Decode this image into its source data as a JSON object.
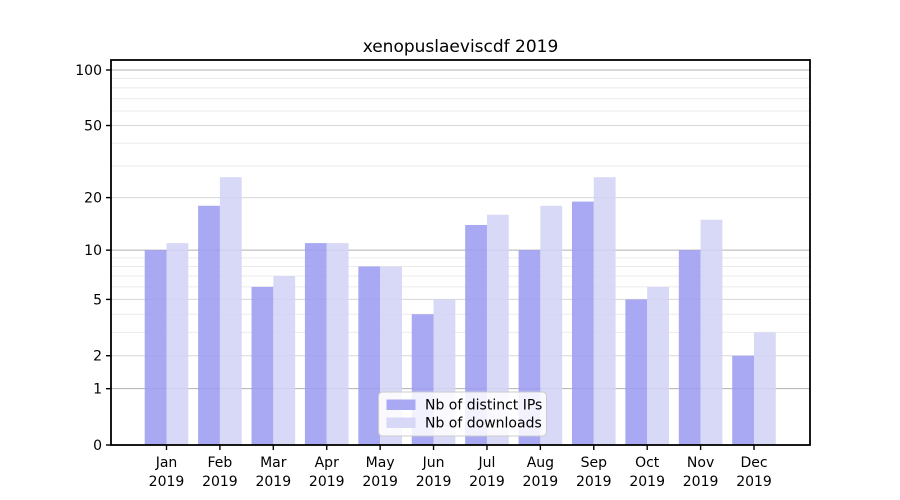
{
  "page": {
    "background": "#ffffff"
  },
  "chart_data": {
    "type": "bar",
    "title": "xenopuslaeviscdf 2019",
    "categories": [
      "Jan 2019",
      "Feb 2019",
      "Mar 2019",
      "Apr 2019",
      "May 2019",
      "Jun 2019",
      "Jul 2019",
      "Aug 2019",
      "Sep 2019",
      "Oct 2019",
      "Nov 2019",
      "Dec 2019"
    ],
    "series": [
      {
        "name": "Nb of distinct IPs",
        "color": "#9d9df1",
        "values": [
          10,
          18,
          6,
          11,
          8,
          4,
          14,
          10,
          19,
          5,
          10,
          2
        ]
      },
      {
        "name": "Nb of downloads",
        "color": "#d3d3f6",
        "values": [
          11,
          26,
          7,
          11,
          8,
          5,
          16,
          18,
          26,
          6,
          15,
          3
        ]
      }
    ],
    "xlabel": "",
    "ylabel": "",
    "y_scale": "log10(value+1)",
    "y_ticks": [
      0,
      1,
      2,
      5,
      10,
      20,
      50,
      100
    ],
    "y_major_gridlines": [
      1,
      10,
      100
    ],
    "y_minor_gridlines": [
      3,
      4,
      6,
      7,
      8,
      9,
      30,
      40,
      60,
      70,
      80,
      90
    ],
    "ylim": [
      0,
      113
    ],
    "grid": true,
    "legend_position": "lower center inside"
  },
  "colors": {
    "grid_major": "#b0b0b0",
    "grid_mid": "#d7d7d7",
    "grid_minor": "#ebebeb",
    "axis": "#000000",
    "legend_border": "#cccccc"
  }
}
